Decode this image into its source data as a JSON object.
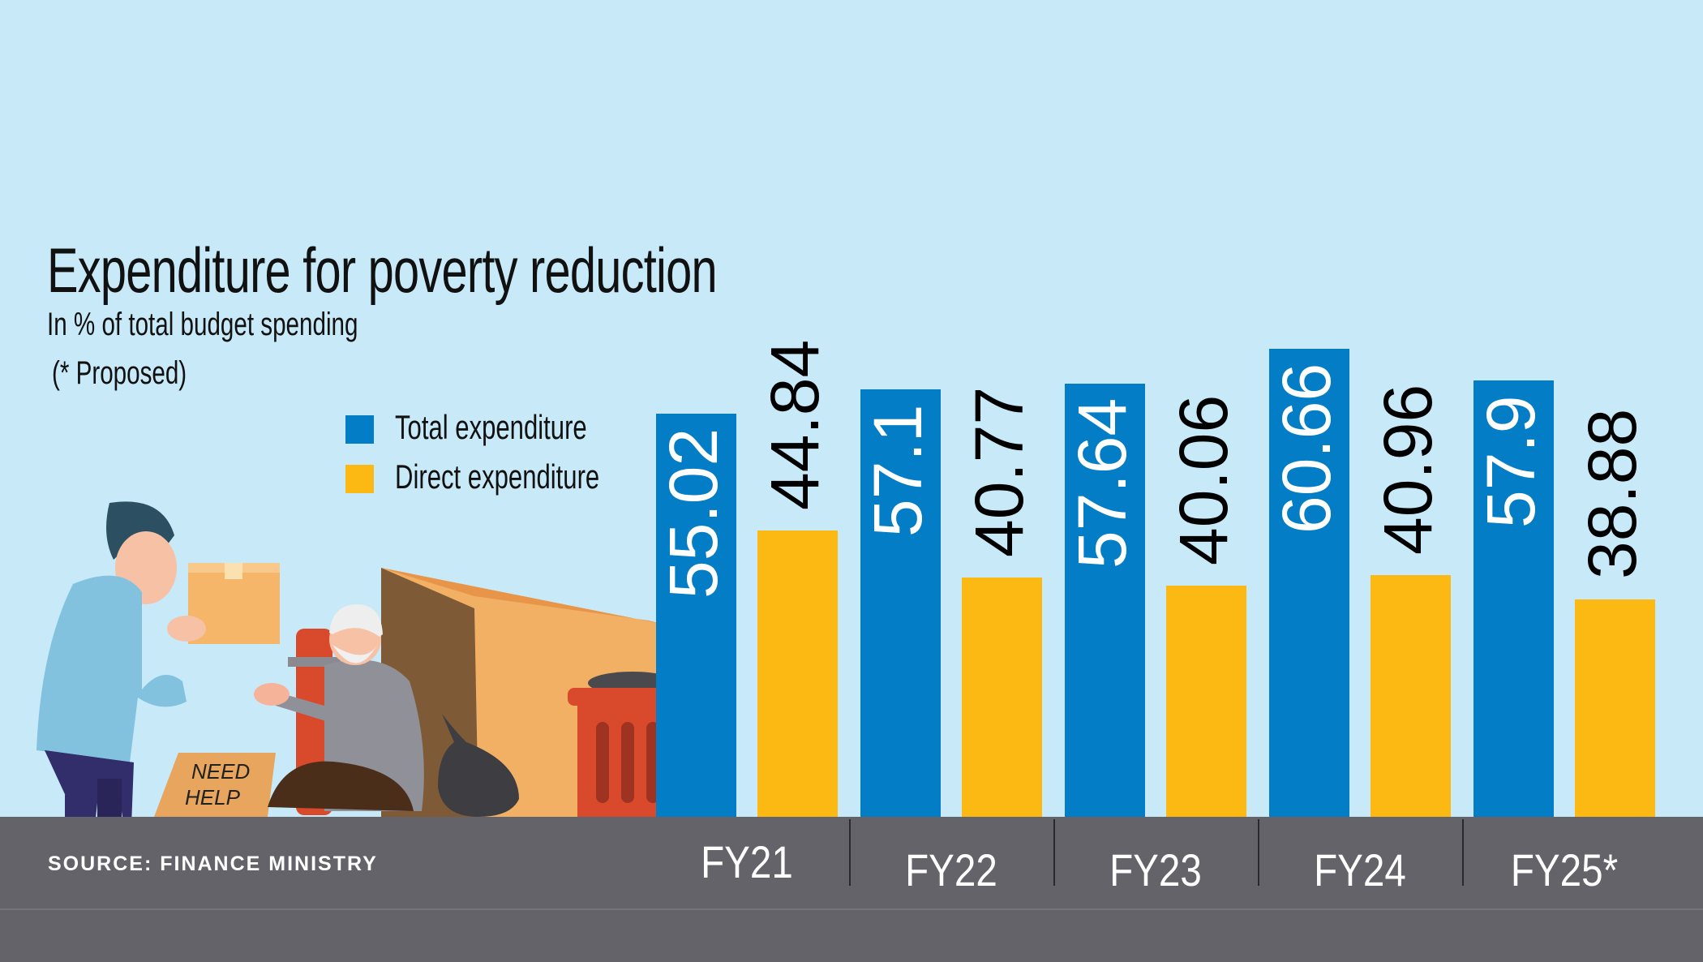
{
  "title": "Expenditure for poverty reduction",
  "subtitle": "In % of total budget spending",
  "note": "(* Proposed)",
  "source": "SOURCE: FINANCE MINISTRY",
  "illustration_sign": [
    "NEED",
    "HELP"
  ],
  "colors": {
    "total": "#037dc6",
    "direct": "#fdb913",
    "background": "#c7e9f8",
    "footer": "#636369"
  },
  "chart_data": {
    "type": "bar",
    "title": "Expenditure for poverty reduction",
    "subtitle": "In % of total budget spending",
    "categories": [
      "FY21",
      "FY22",
      "FY23",
      "FY24",
      "FY25*"
    ],
    "series": [
      {
        "name": "Total expenditure",
        "values": [
          55.02,
          57.1,
          57.64,
          60.66,
          57.9
        ]
      },
      {
        "name": "Direct expenditure",
        "values": [
          44.84,
          40.77,
          40.06,
          40.96,
          38.88
        ]
      }
    ],
    "value_labels": [
      [
        "55.02",
        "57.1",
        "57.64",
        "60.66",
        "57.9"
      ],
      [
        "44.84",
        "40.77",
        "40.06",
        "40.96",
        "38.88"
      ]
    ],
    "legend": [
      "Total expenditure",
      "Direct expenditure"
    ],
    "legend_position": "top-left",
    "grid": false,
    "xlabel": "",
    "ylabel": ""
  }
}
